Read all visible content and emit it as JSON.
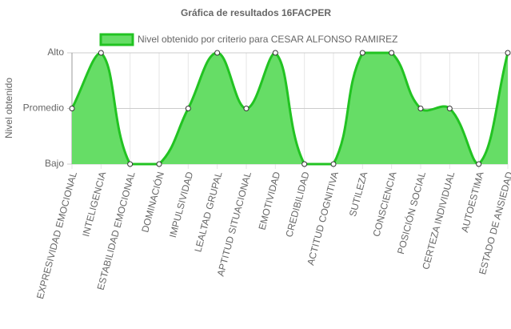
{
  "chart_data": {
    "type": "line",
    "title": "Gráfica de resultados 16FACPER",
    "y_label": "Nivel obtenido",
    "categories": [
      "EXPRESIVIDAD EMOCIONAL",
      "INTELIGENCIA",
      "ESTABILIDAD EMOCIONAL",
      "DOMINACIÓN",
      "IMPULSIVIDAD",
      "LEALTAD GRUPAL",
      "APTITUD SITUACIONAL",
      "EMOTIVIDAD",
      "CREDIBILIDAD",
      "ACTITUD COGNITIVA",
      "SUTILEZA",
      "CONSCIENCIA",
      "POSICIÓN SOCIAL",
      "CERTEZA INDIVIDUAL",
      "AUTOESTIMA",
      "ESTADO DE ANSIEDAD"
    ],
    "series": [
      {
        "name": "Nivel obtenido por criterio para CESAR ALFONSO RAMIREZ",
        "color": "#22c322",
        "fill": "#66dd66",
        "values": [
          2,
          3,
          1,
          1,
          2,
          3,
          2,
          3,
          1,
          1,
          3,
          3,
          2,
          2,
          1,
          3
        ]
      }
    ],
    "ylim": [
      1,
      3
    ],
    "yticks": [
      {
        "value": 1,
        "label": "Bajo"
      },
      {
        "value": 2,
        "label": "Promedio"
      },
      {
        "value": 3,
        "label": "Alto"
      }
    ],
    "grid": true,
    "legend": "top"
  }
}
